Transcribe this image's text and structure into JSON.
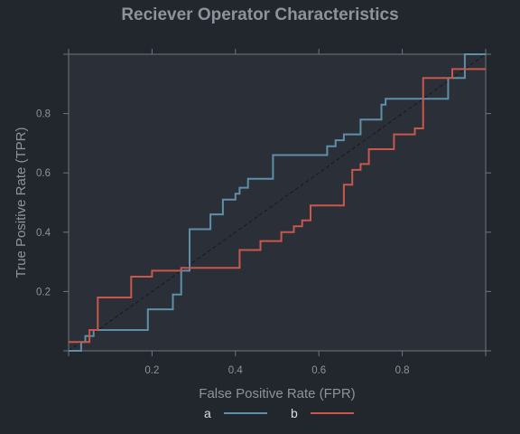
{
  "chart_data": {
    "type": "line",
    "title": "Reciever Operator Characteristics",
    "xlabel": "False Positive Rate (FPR)",
    "ylabel": "True Positive Rate (TPR)",
    "xlim": [
      0,
      1
    ],
    "ylim": [
      0,
      1
    ],
    "x_ticks": [
      0.2,
      0.4,
      0.6,
      0.8
    ],
    "y_ticks": [
      0.2,
      0.4,
      0.6,
      0.8
    ],
    "x_tick_labels": [
      "0.2",
      "0.4",
      "0.6",
      "0.8"
    ],
    "y_tick_labels": [
      "0.2",
      "0.4",
      "0.6",
      "0.8"
    ],
    "grid": false,
    "legend_position": "bottom",
    "diagonal_reference": true,
    "series": [
      {
        "name": "a",
        "color": "#5e8fa8",
        "step_points": [
          [
            0.0,
            0.0
          ],
          [
            0.03,
            0.0
          ],
          [
            0.03,
            0.03
          ],
          [
            0.04,
            0.03
          ],
          [
            0.04,
            0.05
          ],
          [
            0.06,
            0.05
          ],
          [
            0.06,
            0.07
          ],
          [
            0.19,
            0.07
          ],
          [
            0.19,
            0.14
          ],
          [
            0.25,
            0.14
          ],
          [
            0.25,
            0.19
          ],
          [
            0.27,
            0.19
          ],
          [
            0.27,
            0.27
          ],
          [
            0.29,
            0.27
          ],
          [
            0.29,
            0.41
          ],
          [
            0.34,
            0.41
          ],
          [
            0.34,
            0.46
          ],
          [
            0.37,
            0.46
          ],
          [
            0.37,
            0.51
          ],
          [
            0.4,
            0.51
          ],
          [
            0.4,
            0.53
          ],
          [
            0.41,
            0.53
          ],
          [
            0.41,
            0.55
          ],
          [
            0.43,
            0.55
          ],
          [
            0.43,
            0.58
          ],
          [
            0.49,
            0.58
          ],
          [
            0.49,
            0.66
          ],
          [
            0.62,
            0.66
          ],
          [
            0.62,
            0.69
          ],
          [
            0.64,
            0.69
          ],
          [
            0.64,
            0.71
          ],
          [
            0.66,
            0.71
          ],
          [
            0.66,
            0.73
          ],
          [
            0.7,
            0.73
          ],
          [
            0.7,
            0.78
          ],
          [
            0.75,
            0.78
          ],
          [
            0.75,
            0.83
          ],
          [
            0.76,
            0.83
          ],
          [
            0.76,
            0.85
          ],
          [
            0.91,
            0.85
          ],
          [
            0.91,
            0.92
          ],
          [
            0.95,
            0.92
          ],
          [
            0.95,
            1.0
          ],
          [
            1.0,
            1.0
          ]
        ]
      },
      {
        "name": "b",
        "color": "#c8574c",
        "step_points": [
          [
            0.0,
            0.03
          ],
          [
            0.05,
            0.03
          ],
          [
            0.05,
            0.07
          ],
          [
            0.07,
            0.07
          ],
          [
            0.07,
            0.18
          ],
          [
            0.15,
            0.18
          ],
          [
            0.15,
            0.25
          ],
          [
            0.2,
            0.25
          ],
          [
            0.2,
            0.27
          ],
          [
            0.27,
            0.27
          ],
          [
            0.27,
            0.28
          ],
          [
            0.41,
            0.28
          ],
          [
            0.41,
            0.34
          ],
          [
            0.46,
            0.34
          ],
          [
            0.46,
            0.37
          ],
          [
            0.51,
            0.37
          ],
          [
            0.51,
            0.4
          ],
          [
            0.54,
            0.4
          ],
          [
            0.54,
            0.42
          ],
          [
            0.56,
            0.42
          ],
          [
            0.56,
            0.44
          ],
          [
            0.58,
            0.44
          ],
          [
            0.58,
            0.49
          ],
          [
            0.66,
            0.49
          ],
          [
            0.66,
            0.56
          ],
          [
            0.68,
            0.56
          ],
          [
            0.68,
            0.61
          ],
          [
            0.7,
            0.61
          ],
          [
            0.7,
            0.63
          ],
          [
            0.72,
            0.63
          ],
          [
            0.72,
            0.68
          ],
          [
            0.78,
            0.68
          ],
          [
            0.78,
            0.73
          ],
          [
            0.83,
            0.73
          ],
          [
            0.83,
            0.75
          ],
          [
            0.85,
            0.75
          ],
          [
            0.85,
            0.92
          ],
          [
            0.92,
            0.92
          ],
          [
            0.92,
            0.95
          ],
          [
            1.0,
            0.95
          ]
        ]
      }
    ]
  }
}
